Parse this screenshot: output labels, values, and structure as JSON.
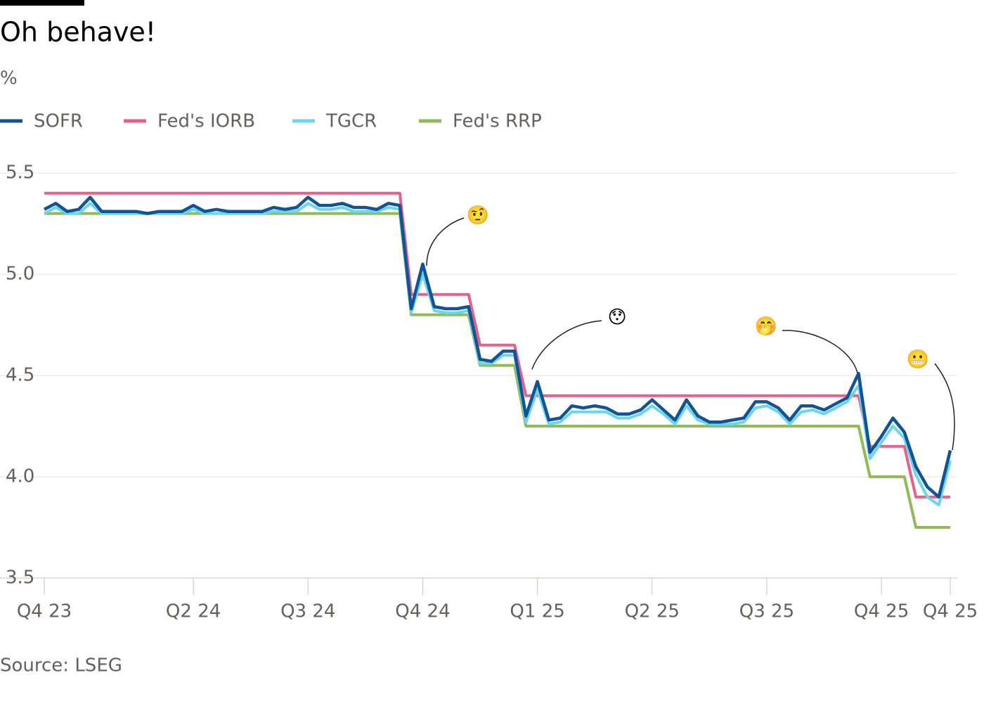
{
  "chart_data": {
    "type": "line",
    "title": "Oh behave!",
    "subtitle": "%",
    "source": "Source: LSEG",
    "categories": [
      "Q4 23",
      null,
      null,
      null,
      null,
      null,
      null,
      null,
      null,
      null,
      null,
      null,
      null,
      "Q2 24",
      null,
      null,
      null,
      null,
      null,
      null,
      null,
      null,
      null,
      "Q3 24",
      null,
      null,
      null,
      null,
      null,
      null,
      null,
      null,
      null,
      "Q4 24",
      null,
      null,
      null,
      null,
      null,
      null,
      null,
      null,
      null,
      "Q1 25",
      null,
      null,
      null,
      null,
      null,
      null,
      null,
      null,
      null,
      "Q2 25",
      null,
      null,
      null,
      null,
      null,
      null,
      null,
      null,
      null,
      "Q3 25",
      null,
      null,
      null,
      null,
      null,
      null,
      null,
      null,
      null,
      "Q4 25",
      null,
      null,
      null,
      null,
      null,
      "Q4 25"
    ],
    "series": [
      {
        "name": "SOFR",
        "color": "#0f5499",
        "values": [
          5.32,
          5.35,
          5.31,
          5.32,
          5.38,
          5.31,
          5.31,
          5.31,
          5.31,
          5.3,
          5.31,
          5.31,
          5.31,
          5.34,
          5.31,
          5.32,
          5.31,
          5.31,
          5.31,
          5.31,
          5.33,
          5.32,
          5.33,
          5.38,
          5.34,
          5.34,
          5.35,
          5.33,
          5.33,
          5.32,
          5.35,
          5.34,
          4.83,
          5.05,
          4.84,
          4.83,
          4.83,
          4.84,
          4.58,
          4.57,
          4.62,
          4.62,
          4.3,
          4.47,
          4.28,
          4.29,
          4.35,
          4.34,
          4.35,
          4.34,
          4.31,
          4.31,
          4.33,
          4.38,
          4.33,
          4.28,
          4.38,
          4.3,
          4.27,
          4.27,
          4.28,
          4.29,
          4.37,
          4.37,
          4.34,
          4.28,
          4.35,
          4.35,
          4.33,
          4.36,
          4.39,
          4.51,
          4.12,
          4.2,
          4.29,
          4.22,
          4.05,
          3.95,
          3.9,
          4.13
        ]
      },
      {
        "name": "Fed's IORB",
        "color": "#e8608a",
        "values": [
          5.4,
          5.4,
          5.4,
          5.4,
          5.4,
          5.4,
          5.4,
          5.4,
          5.4,
          5.4,
          5.4,
          5.4,
          5.4,
          5.4,
          5.4,
          5.4,
          5.4,
          5.4,
          5.4,
          5.4,
          5.4,
          5.4,
          5.4,
          5.4,
          5.4,
          5.4,
          5.4,
          5.4,
          5.4,
          5.4,
          5.4,
          5.4,
          4.9,
          4.9,
          4.9,
          4.9,
          4.9,
          4.9,
          4.65,
          4.65,
          4.65,
          4.65,
          4.4,
          4.4,
          4.4,
          4.4,
          4.4,
          4.4,
          4.4,
          4.4,
          4.4,
          4.4,
          4.4,
          4.4,
          4.4,
          4.4,
          4.4,
          4.4,
          4.4,
          4.4,
          4.4,
          4.4,
          4.4,
          4.4,
          4.4,
          4.4,
          4.4,
          4.4,
          4.4,
          4.4,
          4.4,
          4.4,
          4.15,
          4.15,
          4.15,
          4.15,
          3.9,
          3.9,
          3.9,
          3.9
        ]
      },
      {
        "name": "TGCR",
        "color": "#6bd6e8",
        "values": [
          5.3,
          5.33,
          5.3,
          5.3,
          5.35,
          5.3,
          5.3,
          5.3,
          5.3,
          5.3,
          5.3,
          5.3,
          5.3,
          5.32,
          5.3,
          5.3,
          5.3,
          5.3,
          5.3,
          5.3,
          5.31,
          5.31,
          5.31,
          5.35,
          5.32,
          5.32,
          5.33,
          5.31,
          5.31,
          5.31,
          5.33,
          5.32,
          4.81,
          5.0,
          4.82,
          4.81,
          4.81,
          4.82,
          4.56,
          4.56,
          4.6,
          4.6,
          4.27,
          4.43,
          4.26,
          4.27,
          4.32,
          4.32,
          4.32,
          4.32,
          4.29,
          4.29,
          4.31,
          4.35,
          4.31,
          4.26,
          4.35,
          4.28,
          4.26,
          4.26,
          4.26,
          4.27,
          4.34,
          4.35,
          4.32,
          4.26,
          4.32,
          4.33,
          4.31,
          4.34,
          4.37,
          4.45,
          4.09,
          4.17,
          4.25,
          4.19,
          4.01,
          3.9,
          3.86,
          4.08
        ]
      },
      {
        "name": "Fed's RRP",
        "color": "#8fbc55",
        "values": [
          5.3,
          5.3,
          5.3,
          5.3,
          5.3,
          5.3,
          5.3,
          5.3,
          5.3,
          5.3,
          5.3,
          5.3,
          5.3,
          5.3,
          5.3,
          5.3,
          5.3,
          5.3,
          5.3,
          5.3,
          5.3,
          5.3,
          5.3,
          5.3,
          5.3,
          5.3,
          5.3,
          5.3,
          5.3,
          5.3,
          5.3,
          5.3,
          4.8,
          4.8,
          4.8,
          4.8,
          4.8,
          4.8,
          4.55,
          4.55,
          4.55,
          4.55,
          4.25,
          4.25,
          4.25,
          4.25,
          4.25,
          4.25,
          4.25,
          4.25,
          4.25,
          4.25,
          4.25,
          4.25,
          4.25,
          4.25,
          4.25,
          4.25,
          4.25,
          4.25,
          4.25,
          4.25,
          4.25,
          4.25,
          4.25,
          4.25,
          4.25,
          4.25,
          4.25,
          4.25,
          4.25,
          4.25,
          4.0,
          4.0,
          4.0,
          4.0,
          3.75,
          3.75,
          3.75,
          3.75
        ]
      }
    ],
    "ylim": [
      3.5,
      5.5
    ],
    "yticks": [
      3.5,
      {
        "value": 4,
        "label": "4.0"
      },
      4.5,
      {
        "value": 5,
        "label": "5.0"
      },
      5.5
    ],
    "grid": true,
    "annotations": [
      "🤨",
      "😯",
      "🤭",
      "😬"
    ]
  }
}
